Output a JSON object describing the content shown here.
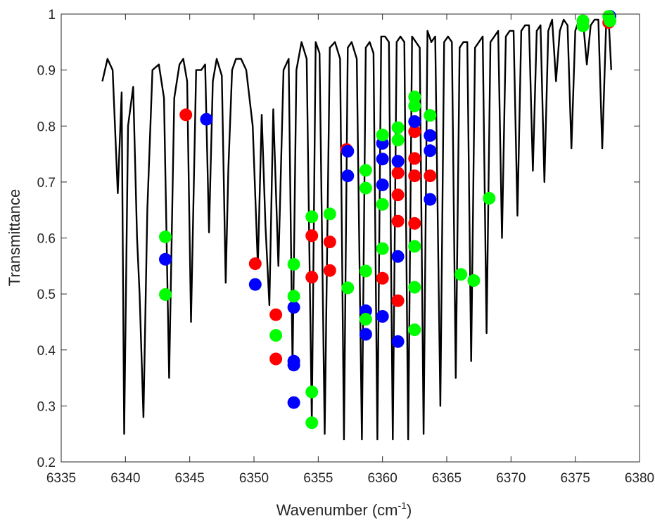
{
  "chart_data": {
    "type": "scatter",
    "title": "",
    "xlabel": "Wavenumber (cm",
    "xlabel_superscript": "-1",
    "xlabel_suffix": ")",
    "ylabel": "Transmittance",
    "xlim": [
      6335,
      6380
    ],
    "ylim": [
      0.2,
      1.0
    ],
    "xticks": [
      "6335",
      "6340",
      "6345",
      "6350",
      "6355",
      "6360",
      "6365",
      "6370",
      "6375",
      "6380"
    ],
    "yticks": [
      "0.2",
      "0.3",
      "0.4",
      "0.5",
      "0.6",
      "0.7",
      "0.8",
      "0.9",
      "1"
    ],
    "grid": false,
    "legend": "none",
    "colors": {
      "spectrum": "#000000",
      "red": "#ff0000",
      "blue": "#0000ff",
      "green": "#00ff00",
      "axis": "#262626"
    },
    "spectrum": {
      "x": [
        6338.2,
        6338.6,
        6339.0,
        6339.4,
        6339.7,
        6339.9,
        6340.2,
        6340.6,
        6340.9,
        6341.1,
        6341.4,
        6341.7,
        6342.1,
        6342.6,
        6343.0,
        6343.4,
        6343.8,
        6344.2,
        6344.5,
        6344.8,
        6345.1,
        6345.5,
        6345.9,
        6346.2,
        6346.5,
        6346.8,
        6347.1,
        6347.5,
        6347.8,
        6348.0,
        6348.3,
        6348.6,
        6349.0,
        6349.4,
        6349.9,
        6350.3,
        6350.6,
        6350.9,
        6351.2,
        6351.5,
        6351.9,
        6352.3,
        6352.7,
        6353.0,
        6353.3,
        6353.7,
        6354.1,
        6354.5,
        6354.8,
        6355.1,
        6355.5,
        6355.9,
        6356.3,
        6356.7,
        6357.0,
        6357.3,
        6357.6,
        6358.0,
        6358.4,
        6358.7,
        6359.0,
        6359.3,
        6359.6,
        6359.9,
        6360.2,
        6360.5,
        6360.8,
        6361.1,
        6361.4,
        6361.7,
        6362.0,
        6362.3,
        6362.6,
        6362.9,
        6363.2,
        6363.5,
        6363.8,
        6364.1,
        6364.5,
        6364.8,
        6365.1,
        6365.4,
        6365.7,
        6366.0,
        6366.3,
        6366.6,
        6366.9,
        6367.2,
        6367.5,
        6367.8,
        6368.1,
        6368.4,
        6368.7,
        6369.0,
        6369.3,
        6369.6,
        6369.9,
        6370.2,
        6370.5,
        6370.8,
        6371.1,
        6371.4,
        6371.7,
        6372.0,
        6372.3,
        6372.6,
        6372.9,
        6373.2,
        6373.5,
        6373.8,
        6374.1,
        6374.4,
        6374.7,
        6375.0,
        6375.3,
        6375.6,
        6375.9,
        6376.2,
        6376.5,
        6376.8,
        6377.1,
        6377.4,
        6377.6,
        6377.8
      ],
      "y": [
        0.88,
        0.92,
        0.9,
        0.68,
        0.86,
        0.25,
        0.8,
        0.87,
        0.6,
        0.5,
        0.28,
        0.65,
        0.9,
        0.91,
        0.85,
        0.35,
        0.85,
        0.91,
        0.92,
        0.88,
        0.45,
        0.9,
        0.9,
        0.91,
        0.61,
        0.88,
        0.92,
        0.89,
        0.52,
        0.72,
        0.9,
        0.92,
        0.92,
        0.9,
        0.8,
        0.55,
        0.82,
        0.62,
        0.48,
        0.83,
        0.55,
        0.9,
        0.92,
        0.37,
        0.9,
        0.95,
        0.92,
        0.27,
        0.95,
        0.93,
        0.25,
        0.94,
        0.95,
        0.92,
        0.24,
        0.94,
        0.95,
        0.92,
        0.24,
        0.94,
        0.95,
        0.93,
        0.24,
        0.96,
        0.96,
        0.95,
        0.24,
        0.95,
        0.96,
        0.95,
        0.24,
        0.96,
        0.95,
        0.94,
        0.25,
        0.97,
        0.95,
        0.96,
        0.3,
        0.95,
        0.96,
        0.95,
        0.35,
        0.94,
        0.95,
        0.95,
        0.38,
        0.94,
        0.95,
        0.96,
        0.43,
        0.95,
        0.96,
        0.97,
        0.6,
        0.96,
        0.97,
        0.97,
        0.64,
        0.97,
        0.98,
        0.98,
        0.72,
        0.97,
        0.98,
        0.7,
        0.97,
        0.99,
        0.88,
        0.97,
        0.99,
        0.98,
        0.76,
        0.97,
        0.99,
        0.99,
        0.91,
        0.98,
        0.99,
        0.99,
        0.76,
        0.98,
        0.99,
        0.9
      ]
    },
    "series": [
      {
        "color": "red",
        "x": [
          6344.7,
          6350.1,
          6351.7,
          6351.7,
          6354.5,
          6354.5,
          6355.9,
          6355.9,
          6357.2,
          6360.0,
          6361.2,
          6361.2,
          6361.2,
          6361.2,
          6362.5,
          6362.5,
          6362.5,
          6362.5,
          6363.7,
          6377.6
        ],
        "y": [
          0.82,
          0.554,
          0.463,
          0.384,
          0.604,
          0.53,
          0.593,
          0.542,
          0.758,
          0.528,
          0.716,
          0.677,
          0.63,
          0.488,
          0.79,
          0.742,
          0.711,
          0.626,
          0.711,
          0.985
        ]
      },
      {
        "color": "blue",
        "x": [
          6343.1,
          6346.3,
          6350.1,
          6353.1,
          6353.1,
          6353.1,
          6353.1,
          6357.3,
          6357.3,
          6358.7,
          6358.7,
          6360.0,
          6360.0,
          6360.0,
          6360.0,
          6361.2,
          6361.2,
          6361.2,
          6362.5,
          6363.7,
          6363.7,
          6363.7,
          6377.7
        ],
        "y": [
          0.562,
          0.812,
          0.517,
          0.476,
          0.38,
          0.373,
          0.306,
          0.755,
          0.711,
          0.47,
          0.428,
          0.769,
          0.741,
          0.695,
          0.46,
          0.737,
          0.567,
          0.415,
          0.808,
          0.783,
          0.756,
          0.669,
          0.996
        ]
      },
      {
        "color": "green",
        "x": [
          6343.1,
          6343.1,
          6351.7,
          6353.1,
          6353.1,
          6354.5,
          6354.5,
          6354.5,
          6355.9,
          6357.3,
          6358.7,
          6358.7,
          6358.7,
          6358.7,
          6360.0,
          6360.0,
          6360.0,
          6361.2,
          6361.2,
          6362.5,
          6362.5,
          6362.5,
          6362.5,
          6362.5,
          6363.7,
          6366.1,
          6367.1,
          6368.3,
          6375.6,
          6375.6,
          6377.6,
          6377.7
        ],
        "y": [
          0.602,
          0.499,
          0.426,
          0.553,
          0.496,
          0.638,
          0.325,
          0.27,
          0.643,
          0.511,
          0.721,
          0.689,
          0.541,
          0.455,
          0.784,
          0.66,
          0.581,
          0.797,
          0.775,
          0.852,
          0.836,
          0.585,
          0.512,
          0.436,
          0.819,
          0.535,
          0.524,
          0.671,
          0.988,
          0.979,
          0.996,
          0.988
        ]
      }
    ]
  }
}
